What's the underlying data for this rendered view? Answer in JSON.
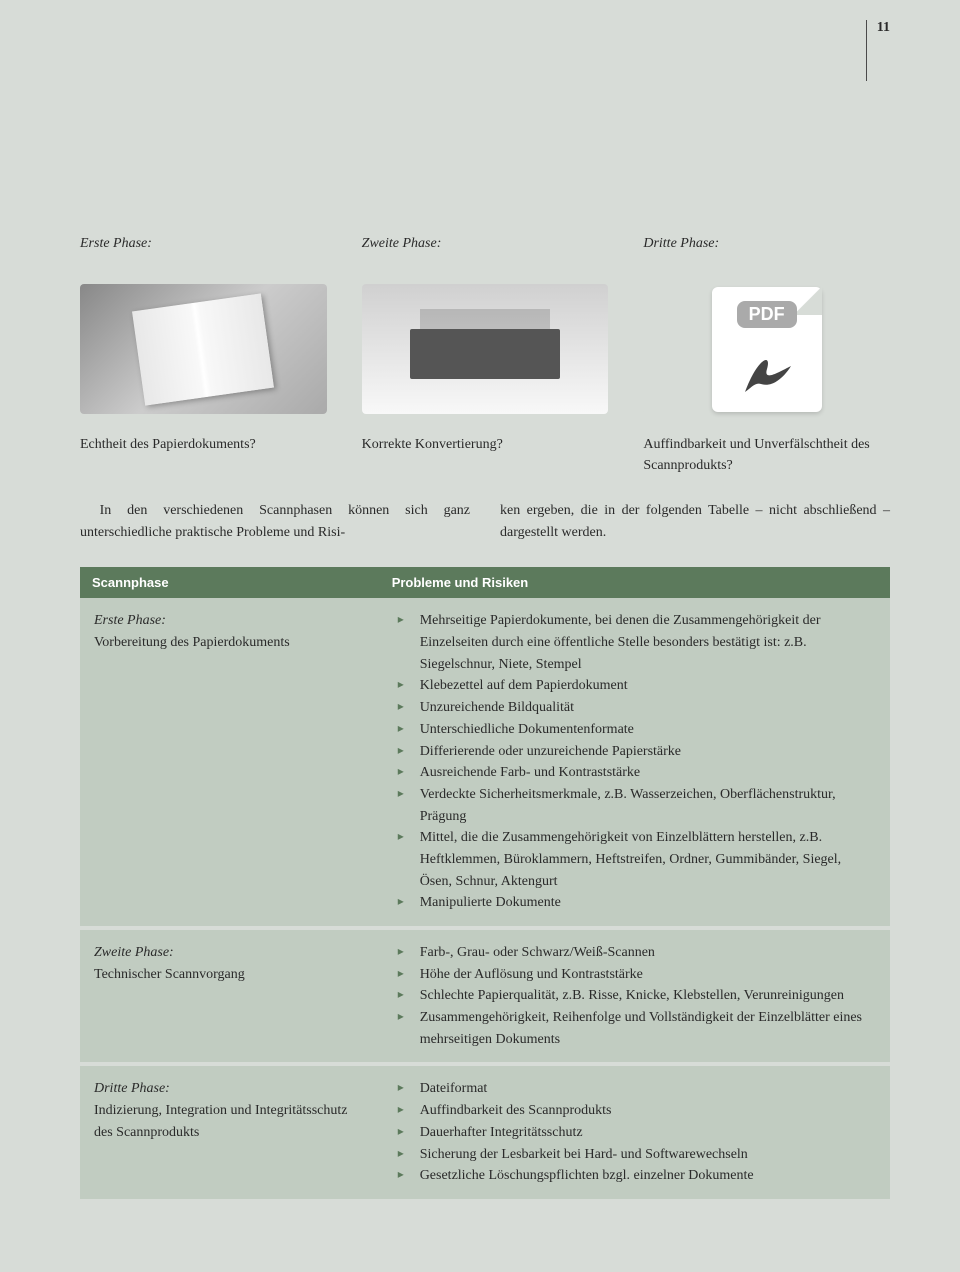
{
  "page_number": "11",
  "phase_row": {
    "p1": "Erste Phase:",
    "p2": "Zweite Phase:",
    "p3": "Dritte Phase:"
  },
  "pdf_badge": "PDF",
  "captions": {
    "c1": "Echtheit des Papierdokuments?",
    "c2": "Korrekte Konvertierung?",
    "c3": "Auffindbarkeit und Unverfälschtheit des Scannprodukts?"
  },
  "intro": {
    "left": "In den verschiedenen Scannphasen können sich ganz unterschiedliche praktische Probleme und Risi-",
    "right": "ken ergeben, die in der folgenden Tabelle – nicht abschließend – dargestellt werden."
  },
  "table": {
    "headers": {
      "h1": "Scannphase",
      "h2": "Probleme und Risiken"
    },
    "rows": [
      {
        "left_title": "Erste Phase:",
        "left_sub": "Vorbereitung des Papierdokuments",
        "items": [
          "Mehrseitige Papierdokumente, bei denen die Zusammengehörigkeit der Einzelseiten durch eine öffentliche Stelle besonders bestätigt ist: z.B. Siegelschnur, Niete, Stempel",
          "Klebezettel auf dem Papierdokument",
          "Unzureichende Bildqualität",
          "Unterschiedliche Dokumentenformate",
          "Differierende oder unzureichende Papierstärke",
          "Ausreichende Farb- und Kontraststärke",
          "Verdeckte Sicherheitsmerkmale, z.B. Wasserzeichen, Oberflächenstruktur, Prägung",
          "Mittel, die die Zusammengehörigkeit von Einzelblättern herstellen, z.B. Heftklemmen, Büroklammern, Heftstreifen, Ordner, Gummibänder, Siegel, Ösen, Schnur, Aktengurt",
          "Manipulierte Dokumente"
        ]
      },
      {
        "left_title": "Zweite Phase:",
        "left_sub": "Technischer Scannvorgang",
        "items": [
          "Farb-, Grau- oder Schwarz/Weiß-Scannen",
          "Höhe der Auflösung und Kontraststärke",
          "Schlechte Papierqualität, z.B. Risse, Knicke, Klebstellen, Verunreinigungen",
          "Zusammengehörigkeit, Reihenfolge und Vollständigkeit der Einzelblätter eines mehrseitigen Dokuments"
        ]
      },
      {
        "left_title": "Dritte Phase:",
        "left_sub": "Indizierung, Integration und Integritätsschutz des Scannprodukts",
        "items": [
          "Dateiformat",
          "Auffindbarkeit des Scannprodukts",
          "Dauerhafter Integritätsschutz",
          "Sicherung der Lesbarkeit bei Hard- und Softwarewechseln",
          "Gesetzliche Löschungspflichten bzgl. einzelner Dokumente"
        ]
      }
    ]
  },
  "colors": {
    "page_bg": "#d7dcd7",
    "header_bg": "#5c7a5c",
    "header_text": "#ffffff",
    "cell_bg": "#c1ccc1",
    "bullet": "#5c7a5c"
  }
}
